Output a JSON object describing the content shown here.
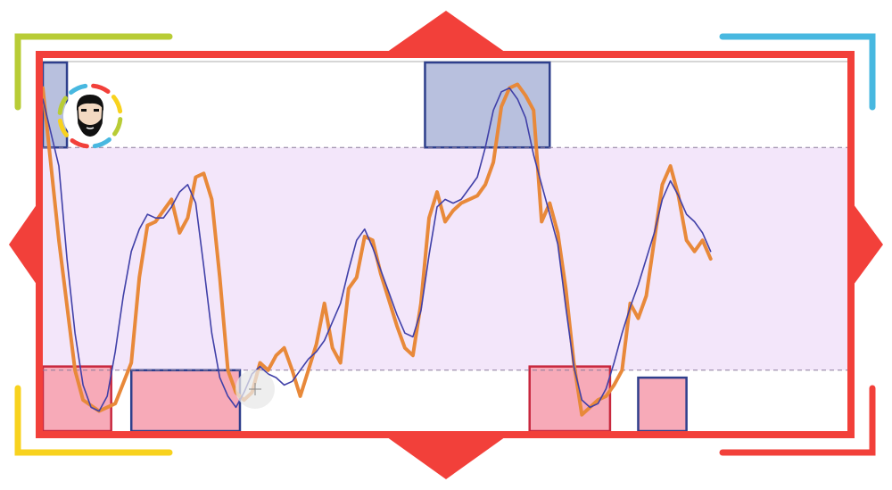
{
  "chart_data": {
    "type": "line",
    "title": "",
    "xlabel": "",
    "ylabel": "",
    "xlim": [
      0,
      100
    ],
    "ylim": [
      0,
      100
    ],
    "grid": false,
    "legend": "none",
    "reference_lines": [
      80,
      20
    ],
    "band": {
      "from": 20,
      "to": 80,
      "color": "#f3e6fa"
    },
    "series": [
      {
        "color": "#e8893a",
        "values": [
          [
            0,
            96
          ],
          [
            2,
            55
          ],
          [
            4,
            20
          ],
          [
            5,
            12
          ],
          [
            7,
            9
          ],
          [
            9,
            11
          ],
          [
            11,
            22
          ],
          [
            12,
            45
          ],
          [
            13,
            59
          ],
          [
            14,
            60
          ],
          [
            15,
            63
          ],
          [
            16,
            66
          ],
          [
            17,
            57
          ],
          [
            18,
            61
          ],
          [
            19,
            72
          ],
          [
            20,
            73
          ],
          [
            21,
            66
          ],
          [
            22,
            45
          ],
          [
            23,
            20
          ],
          [
            24,
            14
          ],
          [
            25,
            12
          ],
          [
            26,
            14
          ],
          [
            27,
            22
          ],
          [
            28,
            20
          ],
          [
            29,
            24
          ],
          [
            30,
            26
          ],
          [
            31,
            20
          ],
          [
            32,
            13
          ],
          [
            33,
            20
          ],
          [
            34,
            27
          ],
          [
            35,
            38
          ],
          [
            36,
            26
          ],
          [
            37,
            22
          ],
          [
            38,
            42
          ],
          [
            39,
            45
          ],
          [
            40,
            56
          ],
          [
            41,
            55
          ],
          [
            42,
            46
          ],
          [
            43,
            39
          ],
          [
            44,
            32
          ],
          [
            45,
            26
          ],
          [
            46,
            24
          ],
          [
            47,
            38
          ],
          [
            48,
            61
          ],
          [
            49,
            68
          ],
          [
            50,
            60
          ],
          [
            51,
            63
          ],
          [
            52,
            65
          ],
          [
            53,
            66
          ],
          [
            54,
            67
          ],
          [
            55,
            70
          ],
          [
            56,
            76
          ],
          [
            57,
            91
          ],
          [
            58,
            96
          ],
          [
            59,
            97
          ],
          [
            60,
            94
          ],
          [
            61,
            90
          ],
          [
            62,
            60
          ],
          [
            63,
            65
          ],
          [
            64,
            57
          ],
          [
            65,
            42
          ],
          [
            66,
            22
          ],
          [
            67,
            8
          ],
          [
            68,
            10
          ],
          [
            69,
            12
          ],
          [
            70,
            13
          ],
          [
            71,
            16
          ],
          [
            72,
            20
          ],
          [
            73,
            38
          ],
          [
            74,
            34
          ],
          [
            75,
            40
          ],
          [
            76,
            55
          ],
          [
            77,
            70
          ],
          [
            78,
            75
          ],
          [
            79,
            67
          ],
          [
            80,
            55
          ],
          [
            81,
            52
          ],
          [
            82,
            55
          ],
          [
            83,
            50
          ]
        ]
      },
      {
        "color": "#4040a8",
        "values": [
          [
            0,
            93
          ],
          [
            2,
            75
          ],
          [
            3,
            50
          ],
          [
            4,
            30
          ],
          [
            5,
            16
          ],
          [
            6,
            10
          ],
          [
            7,
            9
          ],
          [
            8,
            13
          ],
          [
            9,
            25
          ],
          [
            10,
            40
          ],
          [
            11,
            52
          ],
          [
            12,
            58
          ],
          [
            13,
            62
          ],
          [
            14,
            61
          ],
          [
            15,
            61
          ],
          [
            16,
            64
          ],
          [
            17,
            68
          ],
          [
            18,
            70
          ],
          [
            19,
            65
          ],
          [
            20,
            48
          ],
          [
            21,
            30
          ],
          [
            22,
            18
          ],
          [
            23,
            13
          ],
          [
            24,
            10
          ],
          [
            25,
            14
          ],
          [
            26,
            19
          ],
          [
            27,
            21
          ],
          [
            28,
            19
          ],
          [
            29,
            18
          ],
          [
            30,
            16
          ],
          [
            31,
            17
          ],
          [
            32,
            20
          ],
          [
            33,
            23
          ],
          [
            34,
            25
          ],
          [
            35,
            28
          ],
          [
            36,
            33
          ],
          [
            37,
            38
          ],
          [
            38,
            47
          ],
          [
            39,
            55
          ],
          [
            40,
            58
          ],
          [
            41,
            53
          ],
          [
            42,
            47
          ],
          [
            43,
            41
          ],
          [
            44,
            35
          ],
          [
            45,
            30
          ],
          [
            46,
            29
          ],
          [
            47,
            36
          ],
          [
            48,
            51
          ],
          [
            49,
            64
          ],
          [
            50,
            66
          ],
          [
            51,
            65
          ],
          [
            52,
            66
          ],
          [
            53,
            69
          ],
          [
            54,
            72
          ],
          [
            55,
            80
          ],
          [
            56,
            90
          ],
          [
            57,
            95
          ],
          [
            58,
            96
          ],
          [
            59,
            93
          ],
          [
            60,
            88
          ],
          [
            61,
            78
          ],
          [
            62,
            70
          ],
          [
            63,
            62
          ],
          [
            64,
            54
          ],
          [
            65,
            37
          ],
          [
            66,
            21
          ],
          [
            67,
            12
          ],
          [
            68,
            10
          ],
          [
            69,
            11
          ],
          [
            70,
            15
          ],
          [
            71,
            22
          ],
          [
            72,
            30
          ],
          [
            73,
            37
          ],
          [
            74,
            43
          ],
          [
            75,
            50
          ],
          [
            76,
            57
          ],
          [
            77,
            66
          ],
          [
            78,
            71
          ],
          [
            79,
            67
          ],
          [
            80,
            62
          ],
          [
            81,
            60
          ],
          [
            82,
            57
          ],
          [
            83,
            52
          ]
        ]
      }
    ],
    "zones": [
      {
        "kind": "overbought",
        "x0": -2,
        "x1": 3,
        "y0": 80,
        "y1": 103
      },
      {
        "kind": "oversold",
        "x0": -1,
        "x1": 8.5,
        "y0": 2,
        "y1": 21
      },
      {
        "kind": "oversold",
        "x0": 11,
        "x1": 24.5,
        "y0": 1,
        "y1": 20
      },
      {
        "kind": "overbought",
        "x0": 47.5,
        "x1": 63,
        "y0": 80,
        "y1": 103
      },
      {
        "kind": "oversold",
        "x0": 60.5,
        "x1": 70.5,
        "y0": 1,
        "y1": 21
      },
      {
        "kind": "oversold",
        "x0": 74,
        "x1": 80,
        "y0": 2,
        "y1": 18
      }
    ],
    "zone_colors": {
      "overbought": {
        "fill": "#b8c0de",
        "stroke": "#2e3f8c"
      },
      "oversold": {
        "fill": "#f7aab8",
        "stroke": "#c8283e",
        "stroke_alt": "#2e3f8c"
      }
    }
  },
  "decor": {
    "frame_color": "#f2403a",
    "corner_colors": {
      "top_left": "#b8cc36",
      "top_right": "#48b8e0",
      "bottom_left": "#f8d21e",
      "bottom_right": "#f2403a"
    },
    "logo_ring_colors": [
      "#b8cc36",
      "#48b8e0",
      "#f2403a",
      "#f8d21e"
    ],
    "logo_icon": "bearded-man-avatar-icon",
    "cursor_icon": "crosshair-cursor-icon"
  }
}
